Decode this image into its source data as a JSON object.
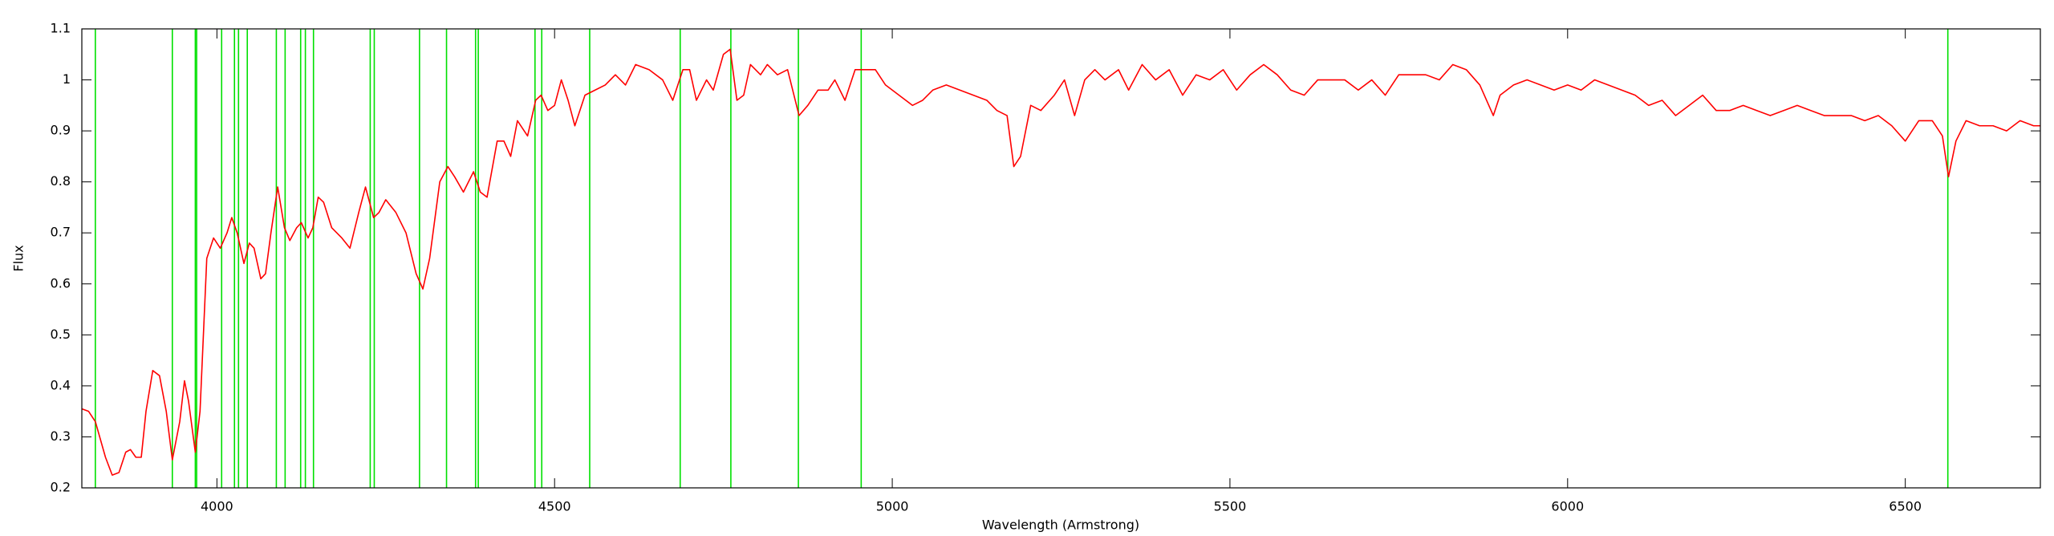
{
  "chart_data": {
    "type": "line",
    "xlabel": "Wavelength (Armstrong)",
    "ylabel": "Flux",
    "xlim": [
      3800,
      6700
    ],
    "ylim": [
      0.2,
      1.1
    ],
    "xticks": [
      4000,
      4500,
      5000,
      5500,
      6000,
      6500
    ],
    "yticks": [
      0.2,
      0.3,
      0.4,
      0.5,
      0.6,
      0.7,
      0.8,
      0.9,
      1,
      1.1
    ],
    "vertical_lines": {
      "color": "#00e000",
      "x": [
        3820,
        3934,
        3968,
        3970,
        4007,
        4026,
        4032,
        4045,
        4088,
        4101,
        4124,
        4131,
        4143,
        4227,
        4233,
        4300,
        4340,
        4383,
        4387,
        4471,
        4481,
        4552,
        4686,
        4761,
        4861,
        4954,
        6563
      ]
    },
    "x": [
      3800,
      3810,
      3820,
      3835,
      3845,
      3855,
      3865,
      3872,
      3880,
      3888,
      3895,
      3905,
      3915,
      3925,
      3934,
      3945,
      3952,
      3958,
      3968,
      3975,
      3985,
      3995,
      4005,
      4015,
      4022,
      4030,
      4040,
      4048,
      4055,
      4065,
      4072,
      4080,
      4090,
      4100,
      4108,
      4118,
      4125,
      4135,
      4142,
      4150,
      4158,
      4170,
      4185,
      4197,
      4210,
      4220,
      4232,
      4240,
      4250,
      4265,
      4280,
      4295,
      4305,
      4315,
      4330,
      4342,
      4352,
      4365,
      4380,
      4390,
      4400,
      4415,
      4425,
      4435,
      4445,
      4460,
      4472,
      4480,
      4490,
      4500,
      4510,
      4520,
      4530,
      4545,
      4560,
      4575,
      4590,
      4605,
      4620,
      4640,
      4660,
      4675,
      4690,
      4700,
      4710,
      4725,
      4735,
      4750,
      4760,
      4770,
      4780,
      4790,
      4805,
      4815,
      4830,
      4845,
      4862,
      4875,
      4890,
      4905,
      4915,
      4930,
      4945,
      4960,
      4975,
      4990,
      5010,
      5030,
      5045,
      5060,
      5080,
      5100,
      5120,
      5140,
      5155,
      5170,
      5180,
      5190,
      5205,
      5220,
      5240,
      5255,
      5270,
      5285,
      5300,
      5315,
      5335,
      5350,
      5370,
      5390,
      5410,
      5430,
      5450,
      5470,
      5490,
      5510,
      5530,
      5550,
      5570,
      5590,
      5610,
      5630,
      5650,
      5670,
      5690,
      5710,
      5730,
      5750,
      5770,
      5790,
      5810,
      5830,
      5850,
      5870,
      5890,
      5900,
      5920,
      5940,
      5960,
      5980,
      6000,
      6020,
      6040,
      6060,
      6080,
      6100,
      6120,
      6140,
      6160,
      6180,
      6200,
      6220,
      6240,
      6260,
      6280,
      6300,
      6320,
      6340,
      6360,
      6380,
      6400,
      6420,
      6440,
      6460,
      6480,
      6500,
      6520,
      6540,
      6555,
      6564,
      6575,
      6590,
      6610,
      6630,
      6650,
      6670,
      6690,
      6700
    ],
    "series": [
      {
        "color": "#ff0000",
        "values": [
          0.355,
          0.35,
          0.33,
          0.26,
          0.225,
          0.23,
          0.27,
          0.275,
          0.26,
          0.26,
          0.35,
          0.43,
          0.42,
          0.35,
          0.255,
          0.33,
          0.41,
          0.37,
          0.27,
          0.35,
          0.65,
          0.69,
          0.67,
          0.7,
          0.73,
          0.7,
          0.64,
          0.68,
          0.67,
          0.61,
          0.62,
          0.7,
          0.79,
          0.71,
          0.685,
          0.71,
          0.72,
          0.69,
          0.71,
          0.77,
          0.76,
          0.71,
          0.69,
          0.67,
          0.74,
          0.79,
          0.73,
          0.74,
          0.765,
          0.74,
          0.7,
          0.62,
          0.59,
          0.65,
          0.8,
          0.83,
          0.81,
          0.78,
          0.82,
          0.78,
          0.77,
          0.88,
          0.88,
          0.85,
          0.92,
          0.89,
          0.96,
          0.97,
          0.94,
          0.95,
          1.0,
          0.96,
          0.91,
          0.97,
          0.98,
          0.99,
          1.01,
          0.99,
          1.03,
          1.02,
          1.0,
          0.96,
          1.02,
          1.02,
          0.96,
          1.0,
          0.98,
          1.05,
          1.06,
          0.96,
          0.97,
          1.03,
          1.01,
          1.03,
          1.01,
          1.02,
          0.93,
          0.95,
          0.98,
          0.98,
          1.0,
          0.96,
          1.02,
          1.02,
          1.02,
          0.99,
          0.97,
          0.95,
          0.96,
          0.98,
          0.99,
          0.98,
          0.97,
          0.96,
          0.94,
          0.93,
          0.83,
          0.85,
          0.95,
          0.94,
          0.97,
          1.0,
          0.93,
          1.0,
          1.02,
          1.0,
          1.02,
          0.98,
          1.03,
          1.0,
          1.02,
          0.97,
          1.01,
          1.0,
          1.02,
          0.98,
          1.01,
          1.03,
          1.01,
          0.98,
          0.97,
          1.0,
          1.0,
          1.0,
          0.98,
          1.0,
          0.97,
          1.01,
          1.01,
          1.01,
          1.0,
          1.03,
          1.02,
          0.99,
          0.93,
          0.97,
          0.99,
          1.0,
          0.99,
          0.98,
          0.99,
          0.98,
          1.0,
          0.99,
          0.98,
          0.97,
          0.95,
          0.96,
          0.93,
          0.95,
          0.97,
          0.94,
          0.94,
          0.95,
          0.94,
          0.93,
          0.94,
          0.95,
          0.94,
          0.93,
          0.93,
          0.93,
          0.92,
          0.93,
          0.91,
          0.88,
          0.92,
          0.92,
          0.89,
          0.81,
          0.88,
          0.92,
          0.91,
          0.91,
          0.9,
          0.92,
          0.91,
          0.91
        ]
      }
    ]
  }
}
